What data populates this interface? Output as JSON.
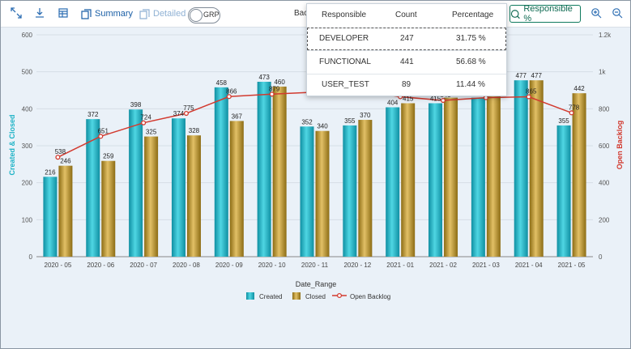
{
  "toolbar": {
    "summary_label": "Summary",
    "detailed_label": "Detailed",
    "grp_label": "GRP",
    "backlog_label": "Bac",
    "responsible_label": "Responsible %"
  },
  "popup": {
    "headers": [
      "Responsible",
      "Count",
      "Percentage"
    ],
    "rows": [
      {
        "responsible": "DEVELOPER",
        "count": "247",
        "percentage": "31.75 %"
      },
      {
        "responsible": "FUNCTIONAL",
        "count": "441",
        "percentage": "56.68 %"
      },
      {
        "responsible": "USER_TEST",
        "count": "89",
        "percentage": "11.44 %"
      }
    ]
  },
  "chart_data": {
    "type": "bar",
    "xlabel": "Date_Range",
    "ylabel": "Created & Closed",
    "y2label": "Open Backlog",
    "ylim": [
      0,
      600
    ],
    "y2lim": [
      0,
      1200
    ],
    "yticks": [
      "0",
      "100",
      "200",
      "300",
      "400",
      "500",
      "600"
    ],
    "y2ticks": [
      "0",
      "200",
      "400",
      "600",
      "800",
      "1k",
      "1.2k"
    ],
    "categories": [
      "2020 - 05",
      "2020 - 06",
      "2020 - 07",
      "2020 - 08",
      "2020 - 09",
      "2020 - 10",
      "2020 - 11",
      "2020 - 12",
      "2021 - 01",
      "2021 - 02",
      "2021 - 03",
      "2021 - 04",
      "2021 - 05"
    ],
    "series": [
      {
        "name": "Created",
        "type": "bar",
        "color": "#1fb3c6",
        "values": [
          216,
          372,
          398,
          374,
          458,
          473,
          352,
          355,
          404,
          415,
          430,
          477,
          355
        ]
      },
      {
        "name": "Closed",
        "type": "bar",
        "color": "#b8932a",
        "values": [
          246,
          259,
          325,
          328,
          367,
          460,
          340,
          370,
          415,
          430,
          440,
          477,
          442
        ]
      },
      {
        "name": "Open Backlog",
        "type": "line",
        "axis": "y2",
        "color": "#d23a2f",
        "values": [
          538,
          651,
          724,
          775,
          866,
          879,
          890,
          900,
          865,
          845,
          860,
          865,
          778
        ]
      }
    ],
    "legend_position": "bottom",
    "grid": true
  }
}
